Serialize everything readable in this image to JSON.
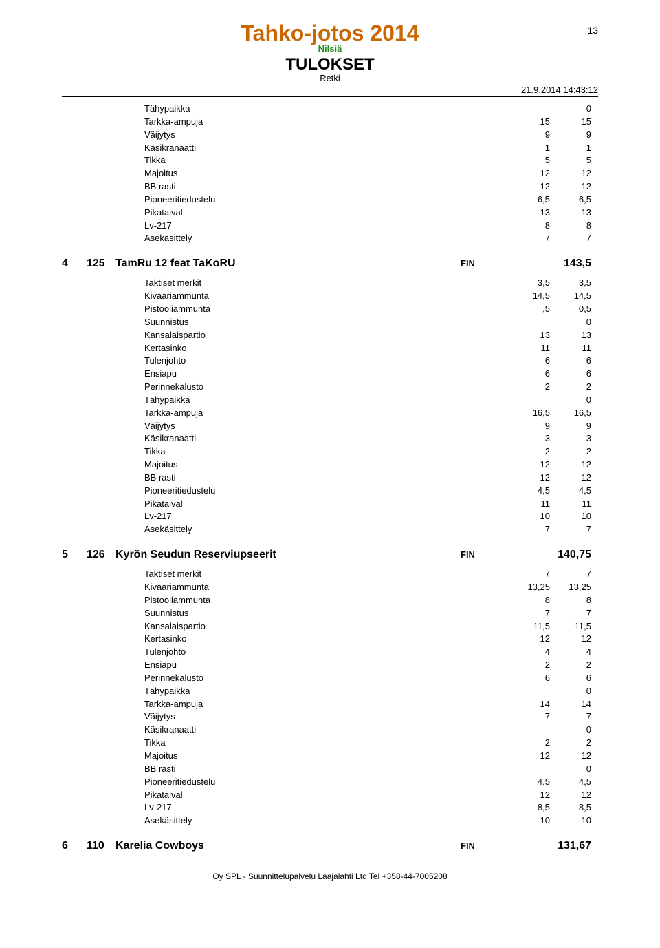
{
  "header": {
    "event_title": "Tahko-jotos 2014",
    "location": "Nilsiä",
    "results_label": "TULOKSET",
    "category": "Retki",
    "page_number": "13",
    "timestamp": "21.9.2014 14:43:12",
    "footer_text": "Oy SPL - Suunnittelupalvelu Laajalahti Ltd Tel +358-44-7005208"
  },
  "partial_block": {
    "rows": [
      {
        "label": "Tähypaikka",
        "c1": "",
        "c2": "0"
      },
      {
        "label": "Tarkka-ampuja",
        "c1": "15",
        "c2": "15"
      },
      {
        "label": "Väijytys",
        "c1": "9",
        "c2": "9"
      },
      {
        "label": "Käsikranaatti",
        "c1": "1",
        "c2": "1"
      },
      {
        "label": "Tikka",
        "c1": "5",
        "c2": "5"
      },
      {
        "label": "Majoitus",
        "c1": "12",
        "c2": "12"
      },
      {
        "label": "BB rasti",
        "c1": "12",
        "c2": "12"
      },
      {
        "label": "Pioneeritiedustelu",
        "c1": "6,5",
        "c2": "6,5"
      },
      {
        "label": "Pikataival",
        "c1": "13",
        "c2": "13"
      },
      {
        "label": "Lv-217",
        "c1": "8",
        "c2": "8"
      },
      {
        "label": "Asekäsittely",
        "c1": "7",
        "c2": "7"
      }
    ]
  },
  "teams": [
    {
      "rank": "4",
      "number": "125",
      "name": "TamRu 12 feat TaKoRU",
      "country": "FIN",
      "score": "143,5",
      "rows": [
        {
          "label": "Taktiset merkit",
          "c1": "3,5",
          "c2": "3,5"
        },
        {
          "label": "Kivääriammunta",
          "c1": "14,5",
          "c2": "14,5"
        },
        {
          "label": "Pistooliammunta",
          "c1": ",5",
          "c2": "0,5"
        },
        {
          "label": "Suunnistus",
          "c1": "",
          "c2": "0"
        },
        {
          "label": "Kansalaispartio",
          "c1": "13",
          "c2": "13"
        },
        {
          "label": "Kertasinko",
          "c1": "11",
          "c2": "11"
        },
        {
          "label": "Tulenjohto",
          "c1": "6",
          "c2": "6"
        },
        {
          "label": "Ensiapu",
          "c1": "6",
          "c2": "6"
        },
        {
          "label": "Perinnekalusto",
          "c1": "2",
          "c2": "2"
        },
        {
          "label": "Tähypaikka",
          "c1": "",
          "c2": "0"
        },
        {
          "label": "Tarkka-ampuja",
          "c1": "16,5",
          "c2": "16,5"
        },
        {
          "label": "Väijytys",
          "c1": "9",
          "c2": "9"
        },
        {
          "label": "Käsikranaatti",
          "c1": "3",
          "c2": "3"
        },
        {
          "label": "Tikka",
          "c1": "2",
          "c2": "2"
        },
        {
          "label": "Majoitus",
          "c1": "12",
          "c2": "12"
        },
        {
          "label": "BB rasti",
          "c1": "12",
          "c2": "12"
        },
        {
          "label": "Pioneeritiedustelu",
          "c1": "4,5",
          "c2": "4,5"
        },
        {
          "label": "Pikataival",
          "c1": "11",
          "c2": "11"
        },
        {
          "label": "Lv-217",
          "c1": "10",
          "c2": "10"
        },
        {
          "label": "Asekäsittely",
          "c1": "7",
          "c2": "7"
        }
      ]
    },
    {
      "rank": "5",
      "number": "126",
      "name": "Kyrön Seudun Reserviupseerit",
      "country": "FIN",
      "score": "140,75",
      "rows": [
        {
          "label": "Taktiset merkit",
          "c1": "7",
          "c2": "7"
        },
        {
          "label": "Kivääriammunta",
          "c1": "13,25",
          "c2": "13,25"
        },
        {
          "label": "Pistooliammunta",
          "c1": "8",
          "c2": "8"
        },
        {
          "label": "Suunnistus",
          "c1": "7",
          "c2": "7"
        },
        {
          "label": "Kansalaispartio",
          "c1": "11,5",
          "c2": "11,5"
        },
        {
          "label": "Kertasinko",
          "c1": "12",
          "c2": "12"
        },
        {
          "label": "Tulenjohto",
          "c1": "4",
          "c2": "4"
        },
        {
          "label": "Ensiapu",
          "c1": "2",
          "c2": "2"
        },
        {
          "label": "Perinnekalusto",
          "c1": "6",
          "c2": "6"
        },
        {
          "label": "Tähypaikka",
          "c1": "",
          "c2": "0"
        },
        {
          "label": "Tarkka-ampuja",
          "c1": "14",
          "c2": "14"
        },
        {
          "label": "Väijytys",
          "c1": "7",
          "c2": "7"
        },
        {
          "label": "Käsikranaatti",
          "c1": "",
          "c2": "0"
        },
        {
          "label": "Tikka",
          "c1": "2",
          "c2": "2"
        },
        {
          "label": "Majoitus",
          "c1": "12",
          "c2": "12"
        },
        {
          "label": "BB rasti",
          "c1": "",
          "c2": "0"
        },
        {
          "label": "Pioneeritiedustelu",
          "c1": "4,5",
          "c2": "4,5"
        },
        {
          "label": "Pikataival",
          "c1": "12",
          "c2": "12"
        },
        {
          "label": "Lv-217",
          "c1": "8,5",
          "c2": "8,5"
        },
        {
          "label": "Asekäsittely",
          "c1": "10",
          "c2": "10"
        }
      ]
    },
    {
      "rank": "6",
      "number": "110",
      "name": "Karelia Cowboys",
      "country": "FIN",
      "score": "131,67",
      "rows": []
    }
  ]
}
